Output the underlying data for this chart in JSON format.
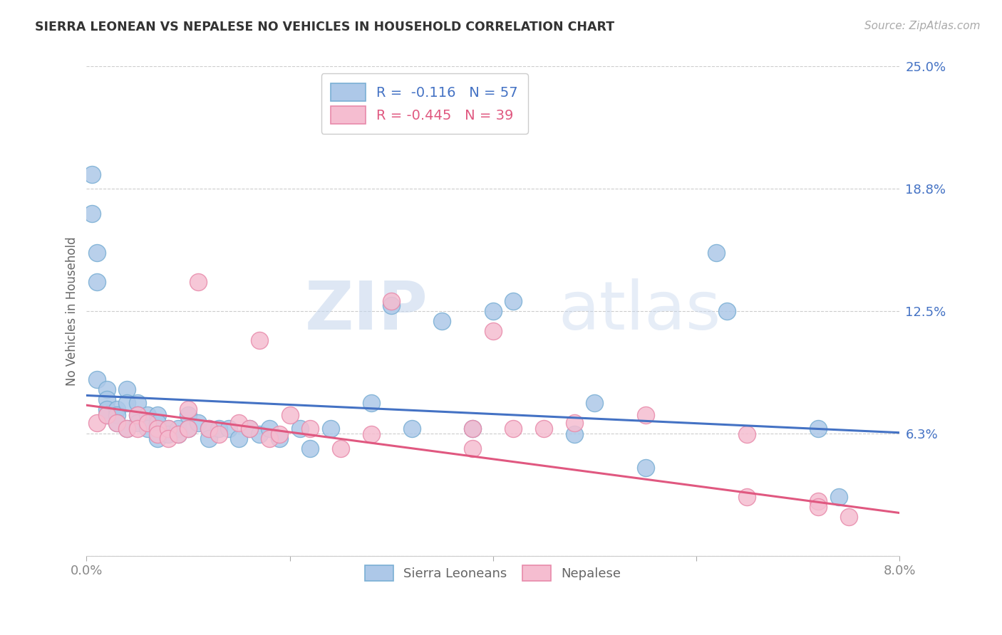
{
  "title": "SIERRA LEONEAN VS NEPALESE NO VEHICLES IN HOUSEHOLD CORRELATION CHART",
  "source": "Source: ZipAtlas.com",
  "ylabel": "No Vehicles in Household",
  "xlim": [
    0.0,
    0.08
  ],
  "ylim": [
    0.0,
    0.25
  ],
  "yticks": [
    0.0,
    0.0625,
    0.125,
    0.1875,
    0.25
  ],
  "ytick_labels": [
    "",
    "6.3%",
    "12.5%",
    "18.8%",
    "25.0%"
  ],
  "xticks": [
    0.0,
    0.02,
    0.04,
    0.06,
    0.08
  ],
  "xtick_labels": [
    "0.0%",
    "",
    "",
    "",
    "8.0%"
  ],
  "blue_R": -0.116,
  "blue_N": 57,
  "pink_R": -0.445,
  "pink_N": 39,
  "blue_color": "#adc8e8",
  "blue_edge": "#7aafd4",
  "pink_color": "#f5bdd0",
  "pink_edge": "#e88aaa",
  "blue_line_color": "#4472c4",
  "pink_line_color": "#e05880",
  "legend_blue_label": "Sierra Leoneans",
  "legend_pink_label": "Nepalese",
  "watermark_zip": "ZIP",
  "watermark_atlas": "atlas",
  "blue_x": [
    0.0005,
    0.0005,
    0.001,
    0.001,
    0.001,
    0.002,
    0.002,
    0.002,
    0.002,
    0.003,
    0.003,
    0.003,
    0.004,
    0.004,
    0.004,
    0.005,
    0.005,
    0.005,
    0.006,
    0.006,
    0.006,
    0.007,
    0.007,
    0.007,
    0.008,
    0.008,
    0.009,
    0.009,
    0.01,
    0.01,
    0.011,
    0.012,
    0.012,
    0.013,
    0.014,
    0.015,
    0.016,
    0.017,
    0.018,
    0.019,
    0.021,
    0.022,
    0.024,
    0.028,
    0.03,
    0.032,
    0.035,
    0.038,
    0.04,
    0.042,
    0.048,
    0.05,
    0.055,
    0.062,
    0.063,
    0.072,
    0.074
  ],
  "blue_y": [
    0.195,
    0.175,
    0.155,
    0.14,
    0.09,
    0.085,
    0.08,
    0.075,
    0.072,
    0.075,
    0.072,
    0.068,
    0.085,
    0.078,
    0.065,
    0.078,
    0.072,
    0.068,
    0.072,
    0.068,
    0.065,
    0.072,
    0.068,
    0.06,
    0.065,
    0.062,
    0.065,
    0.062,
    0.072,
    0.065,
    0.068,
    0.065,
    0.06,
    0.065,
    0.065,
    0.06,
    0.065,
    0.062,
    0.065,
    0.06,
    0.065,
    0.055,
    0.065,
    0.078,
    0.128,
    0.065,
    0.12,
    0.065,
    0.125,
    0.13,
    0.062,
    0.078,
    0.045,
    0.155,
    0.125,
    0.065,
    0.03
  ],
  "pink_x": [
    0.001,
    0.002,
    0.003,
    0.004,
    0.005,
    0.005,
    0.006,
    0.007,
    0.007,
    0.008,
    0.008,
    0.009,
    0.01,
    0.01,
    0.011,
    0.012,
    0.013,
    0.015,
    0.016,
    0.017,
    0.018,
    0.019,
    0.02,
    0.022,
    0.025,
    0.028,
    0.03,
    0.038,
    0.04,
    0.042,
    0.048,
    0.055,
    0.065,
    0.072,
    0.075,
    0.038,
    0.045,
    0.065,
    0.072
  ],
  "pink_y": [
    0.068,
    0.072,
    0.068,
    0.065,
    0.072,
    0.065,
    0.068,
    0.065,
    0.062,
    0.065,
    0.06,
    0.062,
    0.075,
    0.065,
    0.14,
    0.065,
    0.062,
    0.068,
    0.065,
    0.11,
    0.06,
    0.062,
    0.072,
    0.065,
    0.055,
    0.062,
    0.13,
    0.055,
    0.115,
    0.065,
    0.068,
    0.072,
    0.062,
    0.028,
    0.02,
    0.065,
    0.065,
    0.03,
    0.025
  ],
  "blue_trend_x": [
    0.0,
    0.08
  ],
  "blue_trend_y": [
    0.082,
    0.063
  ],
  "pink_trend_x": [
    0.0,
    0.08
  ],
  "pink_trend_y": [
    0.077,
    0.022
  ]
}
